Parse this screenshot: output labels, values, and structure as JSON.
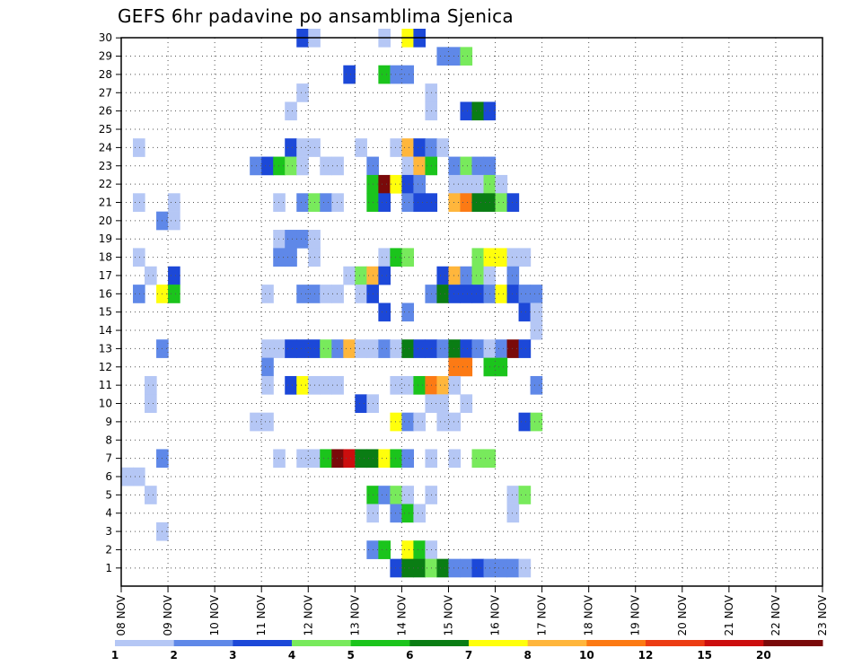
{
  "chart_data": {
    "type": "heatmap",
    "title": "GEFS 6hr padavine po ansamblima Sjenica",
    "xlabel": "",
    "ylabel": "",
    "x_ticks": [
      "08 NOV",
      "09 NOV",
      "10 NOV",
      "11 NOV",
      "12 NOV",
      "13 NOV",
      "14 NOV",
      "15 NOV",
      "16 NOV",
      "17 NOV",
      "18 NOV",
      "19 NOV",
      "20 NOV",
      "21 NOV",
      "22 NOV",
      "23 NOV"
    ],
    "y_ticks": [
      "1",
      "2",
      "3",
      "4",
      "5",
      "6",
      "7",
      "8",
      "9",
      "10",
      "11",
      "12",
      "13",
      "14",
      "15",
      "16",
      "17",
      "18",
      "19",
      "20",
      "21",
      "22",
      "23",
      "24",
      "25",
      "26",
      "27",
      "28",
      "29",
      "30"
    ],
    "xlim_steps": 60,
    "ylim": [
      0,
      30
    ],
    "grid": true,
    "legend_placement": "bottom",
    "legend_levels": [
      "1",
      "2",
      "3",
      "4",
      "5",
      "6",
      "7",
      "8",
      "10",
      "12",
      "15",
      "20"
    ],
    "level_colors": [
      "#b5c7f5",
      "#5f88e8",
      "#1c48d8",
      "#78ea5c",
      "#1bc41c",
      "#0a7d14",
      "#ffff0c",
      "#ffb63c",
      "#fc7a14",
      "#ec3c14",
      "#cc0e0e",
      "#7a0a0a"
    ],
    "values": [
      [
        30,
        15,
        2
      ],
      [
        30,
        16,
        0
      ],
      [
        30,
        22,
        0
      ],
      [
        30,
        24,
        6
      ],
      [
        30,
        25,
        2
      ],
      [
        29,
        27,
        1
      ],
      [
        29,
        28,
        1
      ],
      [
        29,
        29,
        3
      ],
      [
        28,
        19,
        2
      ],
      [
        28,
        22,
        4
      ],
      [
        28,
        23,
        1
      ],
      [
        28,
        24,
        1
      ],
      [
        27,
        15,
        0
      ],
      [
        27,
        26,
        0
      ],
      [
        26,
        14,
        0
      ],
      [
        26,
        26,
        0
      ],
      [
        26,
        29,
        2
      ],
      [
        26,
        30,
        5
      ],
      [
        26,
        31,
        2
      ],
      [
        24,
        1,
        0
      ],
      [
        24,
        14,
        2
      ],
      [
        24,
        15,
        0
      ],
      [
        24,
        16,
        0
      ],
      [
        24,
        20,
        0
      ],
      [
        24,
        23,
        0
      ],
      [
        24,
        24,
        7
      ],
      [
        24,
        25,
        2
      ],
      [
        24,
        26,
        1
      ],
      [
        24,
        27,
        0
      ],
      [
        23,
        11,
        1
      ],
      [
        23,
        12,
        2
      ],
      [
        23,
        13,
        4
      ],
      [
        23,
        14,
        3
      ],
      [
        23,
        15,
        0
      ],
      [
        23,
        17,
        0
      ],
      [
        23,
        18,
        0
      ],
      [
        23,
        21,
        1
      ],
      [
        23,
        24,
        0
      ],
      [
        23,
        25,
        7
      ],
      [
        23,
        26,
        4
      ],
      [
        23,
        28,
        1
      ],
      [
        23,
        29,
        3
      ],
      [
        23,
        30,
        1
      ],
      [
        23,
        31,
        1
      ],
      [
        22,
        21,
        4
      ],
      [
        22,
        22,
        11
      ],
      [
        22,
        23,
        6
      ],
      [
        22,
        24,
        2
      ],
      [
        22,
        25,
        1
      ],
      [
        22,
        28,
        0
      ],
      [
        22,
        29,
        0
      ],
      [
        22,
        30,
        0
      ],
      [
        22,
        31,
        3
      ],
      [
        22,
        32,
        0
      ],
      [
        21,
        1,
        0
      ],
      [
        21,
        4,
        0
      ],
      [
        21,
        13,
        0
      ],
      [
        21,
        15,
        1
      ],
      [
        21,
        16,
        3
      ],
      [
        21,
        17,
        1
      ],
      [
        21,
        18,
        0
      ],
      [
        21,
        21,
        4
      ],
      [
        21,
        22,
        2
      ],
      [
        21,
        24,
        1
      ],
      [
        21,
        25,
        2
      ],
      [
        21,
        26,
        2
      ],
      [
        21,
        28,
        7
      ],
      [
        21,
        29,
        8
      ],
      [
        21,
        30,
        5
      ],
      [
        21,
        31,
        5
      ],
      [
        21,
        32,
        3
      ],
      [
        21,
        33,
        2
      ],
      [
        20,
        3,
        1
      ],
      [
        20,
        4,
        0
      ],
      [
        19,
        13,
        0
      ],
      [
        19,
        14,
        1
      ],
      [
        19,
        15,
        1
      ],
      [
        19,
        16,
        0
      ],
      [
        18,
        1,
        0
      ],
      [
        18,
        13,
        1
      ],
      [
        18,
        14,
        1
      ],
      [
        18,
        16,
        0
      ],
      [
        18,
        22,
        0
      ],
      [
        18,
        23,
        4
      ],
      [
        18,
        24,
        3
      ],
      [
        18,
        30,
        3
      ],
      [
        18,
        31,
        6
      ],
      [
        18,
        32,
        6
      ],
      [
        18,
        33,
        0
      ],
      [
        18,
        34,
        0
      ],
      [
        17,
        2,
        0
      ],
      [
        17,
        4,
        2
      ],
      [
        17,
        19,
        0
      ],
      [
        17,
        20,
        3
      ],
      [
        17,
        21,
        7
      ],
      [
        17,
        22,
        2
      ],
      [
        17,
        27,
        2
      ],
      [
        17,
        28,
        7
      ],
      [
        17,
        29,
        1
      ],
      [
        17,
        30,
        3
      ],
      [
        17,
        31,
        0
      ],
      [
        17,
        33,
        1
      ],
      [
        16,
        1,
        1
      ],
      [
        16,
        3,
        6
      ],
      [
        16,
        4,
        4
      ],
      [
        16,
        12,
        0
      ],
      [
        16,
        15,
        1
      ],
      [
        16,
        16,
        1
      ],
      [
        16,
        17,
        0
      ],
      [
        16,
        18,
        0
      ],
      [
        16,
        20,
        0
      ],
      [
        16,
        21,
        2
      ],
      [
        16,
        26,
        1
      ],
      [
        16,
        27,
        5
      ],
      [
        16,
        28,
        2
      ],
      [
        16,
        29,
        2
      ],
      [
        16,
        30,
        2
      ],
      [
        16,
        31,
        1
      ],
      [
        16,
        32,
        6
      ],
      [
        16,
        33,
        2
      ],
      [
        16,
        34,
        1
      ],
      [
        16,
        35,
        1
      ],
      [
        15,
        22,
        2
      ],
      [
        15,
        24,
        1
      ],
      [
        15,
        34,
        2
      ],
      [
        15,
        35,
        0
      ],
      [
        14,
        35,
        0
      ],
      [
        13,
        3,
        1
      ],
      [
        13,
        12,
        0
      ],
      [
        13,
        13,
        0
      ],
      [
        13,
        14,
        2
      ],
      [
        13,
        15,
        2
      ],
      [
        13,
        16,
        2
      ],
      [
        13,
        17,
        3
      ],
      [
        13,
        18,
        1
      ],
      [
        13,
        19,
        7
      ],
      [
        13,
        20,
        0
      ],
      [
        13,
        21,
        0
      ],
      [
        13,
        22,
        1
      ],
      [
        13,
        23,
        0
      ],
      [
        13,
        24,
        5
      ],
      [
        13,
        25,
        2
      ],
      [
        13,
        26,
        2
      ],
      [
        13,
        27,
        1
      ],
      [
        13,
        28,
        5
      ],
      [
        13,
        29,
        2
      ],
      [
        13,
        30,
        1
      ],
      [
        13,
        31,
        0
      ],
      [
        13,
        32,
        1
      ],
      [
        13,
        33,
        11
      ],
      [
        13,
        34,
        2
      ],
      [
        12,
        12,
        1
      ],
      [
        12,
        28,
        8
      ],
      [
        12,
        29,
        8
      ],
      [
        12,
        31,
        4
      ],
      [
        12,
        32,
        4
      ],
      [
        11,
        2,
        0
      ],
      [
        11,
        12,
        0
      ],
      [
        11,
        14,
        2
      ],
      [
        11,
        15,
        6
      ],
      [
        11,
        16,
        0
      ],
      [
        11,
        17,
        0
      ],
      [
        11,
        18,
        0
      ],
      [
        11,
        23,
        0
      ],
      [
        11,
        24,
        0
      ],
      [
        11,
        25,
        4
      ],
      [
        11,
        26,
        8
      ],
      [
        11,
        27,
        7
      ],
      [
        11,
        28,
        0
      ],
      [
        11,
        35,
        1
      ],
      [
        10,
        2,
        0
      ],
      [
        10,
        20,
        2
      ],
      [
        10,
        21,
        0
      ],
      [
        10,
        26,
        0
      ],
      [
        10,
        27,
        0
      ],
      [
        10,
        29,
        0
      ],
      [
        9,
        11,
        0
      ],
      [
        9,
        12,
        0
      ],
      [
        9,
        23,
        6
      ],
      [
        9,
        24,
        1
      ],
      [
        9,
        25,
        0
      ],
      [
        9,
        27,
        0
      ],
      [
        9,
        28,
        0
      ],
      [
        9,
        34,
        2
      ],
      [
        9,
        35,
        3
      ],
      [
        7,
        3,
        1
      ],
      [
        7,
        13,
        0
      ],
      [
        7,
        15,
        0
      ],
      [
        7,
        16,
        0
      ],
      [
        7,
        17,
        4
      ],
      [
        7,
        18,
        11
      ],
      [
        7,
        19,
        10
      ],
      [
        7,
        20,
        5
      ],
      [
        7,
        21,
        5
      ],
      [
        7,
        22,
        6
      ],
      [
        7,
        23,
        4
      ],
      [
        7,
        24,
        1
      ],
      [
        7,
        26,
        0
      ],
      [
        7,
        28,
        0
      ],
      [
        7,
        30,
        3
      ],
      [
        7,
        31,
        3
      ],
      [
        6,
        0,
        0
      ],
      [
        6,
        1,
        0
      ],
      [
        5,
        2,
        0
      ],
      [
        5,
        21,
        4
      ],
      [
        5,
        22,
        1
      ],
      [
        5,
        23,
        3
      ],
      [
        5,
        24,
        0
      ],
      [
        5,
        26,
        0
      ],
      [
        5,
        33,
        0
      ],
      [
        5,
        34,
        3
      ],
      [
        4,
        21,
        0
      ],
      [
        4,
        23,
        1
      ],
      [
        4,
        24,
        4
      ],
      [
        4,
        25,
        0
      ],
      [
        4,
        33,
        0
      ],
      [
        3,
        3,
        0
      ],
      [
        2,
        21,
        1
      ],
      [
        2,
        22,
        4
      ],
      [
        2,
        24,
        6
      ],
      [
        2,
        25,
        4
      ],
      [
        2,
        26,
        0
      ],
      [
        1,
        23,
        2
      ],
      [
        1,
        24,
        5
      ],
      [
        1,
        25,
        5
      ],
      [
        1,
        26,
        3
      ],
      [
        1,
        27,
        5
      ],
      [
        1,
        28,
        1
      ],
      [
        1,
        29,
        1
      ],
      [
        1,
        30,
        2
      ],
      [
        1,
        31,
        1
      ],
      [
        1,
        32,
        1
      ],
      [
        1,
        33,
        1
      ],
      [
        1,
        34,
        0
      ]
    ]
  }
}
